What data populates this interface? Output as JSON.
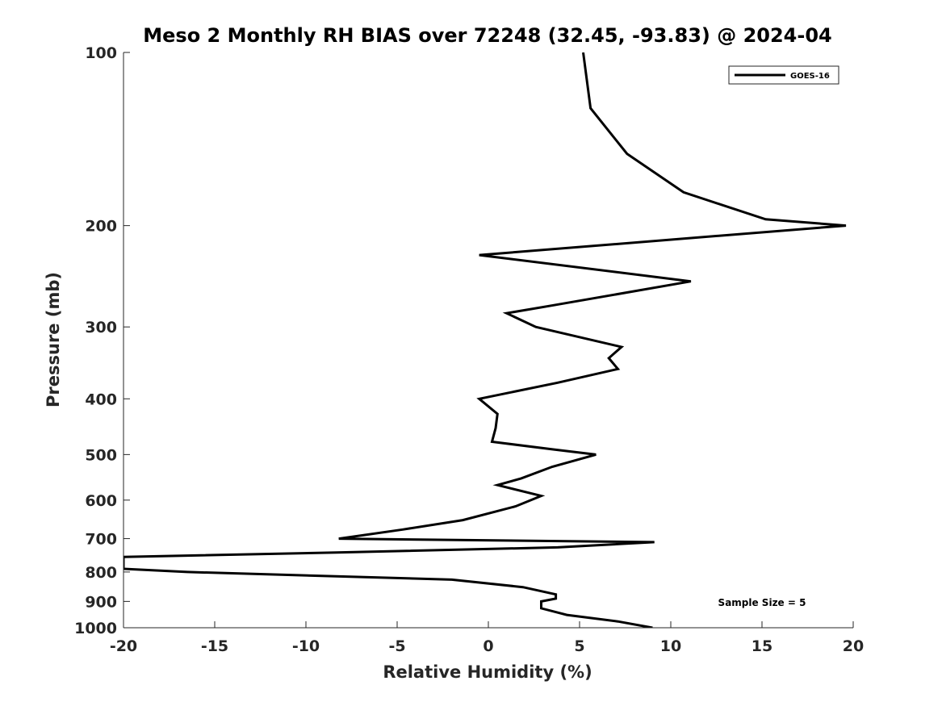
{
  "chart_data": {
    "type": "line",
    "title": "Meso 2 Monthly RH BIAS over 72248 (32.45, -93.83) @ 2024-04",
    "xlabel": "Relative Humidity (%)",
    "ylabel": "Pressure (mb)",
    "xlim": [
      -20,
      20
    ],
    "ylim": [
      100,
      1000
    ],
    "y_scale": "log",
    "y_reversed": true,
    "xticks": [
      -20,
      -15,
      -10,
      -5,
      0,
      5,
      10,
      15,
      20
    ],
    "yticks": [
      100,
      200,
      300,
      400,
      500,
      600,
      700,
      800,
      900,
      1000
    ],
    "legend_position": "top-right",
    "grid": false,
    "annotation": "Sample Size = 5",
    "series": [
      {
        "name": "GOES-16",
        "color": "#000000",
        "points": [
          [
            5.2,
            100
          ],
          [
            5.6,
            125
          ],
          [
            7.6,
            150
          ],
          [
            10.7,
            175
          ],
          [
            15.2,
            195
          ],
          [
            19.6,
            200
          ],
          [
            -0.5,
            225
          ],
          [
            11.1,
            250
          ],
          [
            3.6,
            275
          ],
          [
            1.0,
            284
          ],
          [
            2.6,
            300
          ],
          [
            7.3,
            325
          ],
          [
            6.6,
            340
          ],
          [
            7.1,
            355
          ],
          [
            3.8,
            375
          ],
          [
            -0.5,
            400
          ],
          [
            0.5,
            425
          ],
          [
            0.4,
            450
          ],
          [
            0.2,
            475
          ],
          [
            3.6,
            490
          ],
          [
            5.9,
            500
          ],
          [
            3.5,
            525
          ],
          [
            1.8,
            550
          ],
          [
            0.5,
            565
          ],
          [
            2.9,
            590
          ],
          [
            1.5,
            615
          ],
          [
            -1.4,
            650
          ],
          [
            -4.7,
            675
          ],
          [
            -8.2,
            700
          ],
          [
            9.1,
            710
          ],
          [
            3.8,
            725
          ],
          [
            -8.3,
            740
          ],
          [
            -20.0,
            753
          ],
          [
            -20.0,
            790
          ],
          [
            -16.5,
            800
          ],
          [
            -2.0,
            825
          ],
          [
            1.9,
            850
          ],
          [
            3.7,
            875
          ],
          [
            3.7,
            890
          ],
          [
            2.9,
            900
          ],
          [
            2.9,
            925
          ],
          [
            4.3,
            950
          ],
          [
            7.1,
            975
          ],
          [
            9.0,
            1000
          ]
        ]
      }
    ]
  }
}
